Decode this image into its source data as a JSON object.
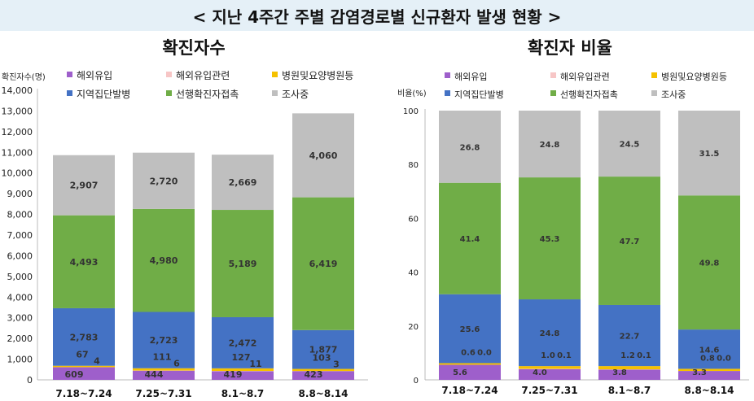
{
  "title": "< 지난 4주간 주별 감염경로별 신규환자 발생 현황 >",
  "colors": {
    "해외유입": "#9e5fcb",
    "해외유입관련": "#f7c6c6",
    "병원및요양병원등": "#f5c100",
    "지역집단발병": "#4472c4",
    "선행확진자접촉": "#70ad47",
    "조사중": "#bfbfbf"
  },
  "chart_data": [
    {
      "type": "bar",
      "stacked": true,
      "title": "확진자수",
      "ylabel": "확진자수(명)",
      "ylim": [
        0,
        14000
      ],
      "yticks": [
        "0",
        "1,000",
        "2,000",
        "3,000",
        "4,000",
        "5,000",
        "6,000",
        "7,000",
        "8,000",
        "9,000",
        "10,000",
        "11,000",
        "12,000",
        "13,000",
        "14,000"
      ],
      "legend": [
        "해외유입",
        "해외유입관련",
        "병원및요양병원등",
        "지역집단발병",
        "선행확진자접촉",
        "조사중"
      ],
      "categories": [
        "7.18~7.24",
        "7.25~7.31",
        "8.1~8.7",
        "8.8~8.14"
      ],
      "series": [
        {
          "name": "해외유입",
          "values": [
            609,
            444,
            419,
            423
          ],
          "labels": [
            "609",
            "444",
            "419",
            "423"
          ]
        },
        {
          "name": "해외유입관련",
          "values": [
            4,
            6,
            11,
            3
          ],
          "labels": [
            "4",
            "6",
            "11",
            "3"
          ]
        },
        {
          "name": "병원및요양병원등",
          "values": [
            67,
            111,
            127,
            103
          ],
          "labels": [
            "67",
            "111",
            "127",
            "103"
          ]
        },
        {
          "name": "지역집단발병",
          "values": [
            2783,
            2723,
            2472,
            1877
          ],
          "labels": [
            "2,783",
            "2,723",
            "2,472",
            "1,877"
          ]
        },
        {
          "name": "선행확진자접촉",
          "values": [
            4493,
            4980,
            5189,
            6419
          ],
          "labels": [
            "4,493",
            "4,980",
            "5,189",
            "6,419"
          ]
        },
        {
          "name": "조사중",
          "values": [
            2907,
            2720,
            2669,
            4060
          ],
          "labels": [
            "2,907",
            "2,720",
            "2,669",
            "4,060"
          ]
        }
      ]
    },
    {
      "type": "bar",
      "stacked": true,
      "title": "확진자 비율",
      "ylabel": "비율(%)",
      "ylim": [
        0,
        100
      ],
      "yticks": [
        "0",
        "20",
        "40",
        "60",
        "80",
        "100"
      ],
      "legend": [
        "해외유입",
        "해외유입관련",
        "병원및요양병원등",
        "지역집단발병",
        "선행확진자접촉",
        "조사중"
      ],
      "categories": [
        "7.18~7.24",
        "7.25~7.31",
        "8.1~8.7",
        "8.8~8.14"
      ],
      "series": [
        {
          "name": "해외유입",
          "values": [
            5.6,
            4.0,
            3.8,
            3.3
          ],
          "labels": [
            "5.6",
            "4.0",
            "3.8",
            "3.3"
          ]
        },
        {
          "name": "해외유입관련",
          "values": [
            0.0,
            0.1,
            0.1,
            0.0
          ],
          "labels": [
            "0.0",
            "0.1",
            "0.1",
            "0.0"
          ]
        },
        {
          "name": "병원및요양병원등",
          "values": [
            0.6,
            1.0,
            1.2,
            0.8
          ],
          "labels": [
            "0.6",
            "1.0",
            "1.2",
            "0.8"
          ]
        },
        {
          "name": "지역집단발병",
          "values": [
            25.6,
            24.8,
            22.7,
            14.6
          ],
          "labels": [
            "25.6",
            "24.8",
            "22.7",
            "14.6"
          ]
        },
        {
          "name": "선행확진자접촉",
          "values": [
            41.4,
            45.3,
            47.7,
            49.8
          ],
          "labels": [
            "41.4",
            "45.3",
            "47.7",
            "49.8"
          ]
        },
        {
          "name": "조사중",
          "values": [
            26.8,
            24.8,
            24.5,
            31.5
          ],
          "labels": [
            "26.8",
            "24.8",
            "24.5",
            "31.5"
          ]
        }
      ]
    }
  ]
}
